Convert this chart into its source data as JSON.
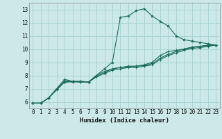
{
  "title": "",
  "xlabel": "Humidex (Indice chaleur)",
  "bg_color": "#cce8e8",
  "grid_color": "#aad4d4",
  "line_color": "#1a6b5a",
  "xlim": [
    -0.5,
    23.5
  ],
  "ylim": [
    5.5,
    13.5
  ],
  "xticks": [
    0,
    1,
    2,
    3,
    4,
    5,
    6,
    7,
    8,
    9,
    10,
    11,
    12,
    13,
    14,
    15,
    16,
    17,
    18,
    19,
    20,
    21,
    22,
    23
  ],
  "yticks": [
    6,
    7,
    8,
    9,
    10,
    11,
    12,
    13
  ],
  "line1_x": [
    0,
    1,
    2,
    3,
    4,
    5,
    6,
    7,
    8,
    9,
    10,
    11,
    12,
    13,
    14,
    15,
    16,
    17,
    18,
    19,
    20,
    21,
    22,
    23
  ],
  "line1_y": [
    5.9,
    5.9,
    6.3,
    7.0,
    7.5,
    7.55,
    7.55,
    7.5,
    8.0,
    8.5,
    9.0,
    12.4,
    12.5,
    12.9,
    13.05,
    12.5,
    12.1,
    11.75,
    11.0,
    10.7,
    10.6,
    10.5,
    10.4,
    10.3
  ],
  "line2_x": [
    0,
    1,
    2,
    3,
    4,
    5,
    6,
    7,
    8,
    9,
    10,
    11,
    12,
    13,
    14,
    15,
    16,
    17,
    18,
    19,
    20,
    21,
    22,
    23
  ],
  "line2_y": [
    5.9,
    5.9,
    6.3,
    7.0,
    7.7,
    7.55,
    7.5,
    7.5,
    8.0,
    8.3,
    8.5,
    8.6,
    8.7,
    8.7,
    8.8,
    9.0,
    9.5,
    9.8,
    9.9,
    10.0,
    10.15,
    10.2,
    10.3,
    10.3
  ],
  "line3_x": [
    0,
    1,
    2,
    3,
    4,
    5,
    6,
    7,
    8,
    9,
    10,
    11,
    12,
    13,
    14,
    15,
    16,
    17,
    18,
    19,
    20,
    21,
    22,
    23
  ],
  "line3_y": [
    5.9,
    5.9,
    6.3,
    6.95,
    7.6,
    7.55,
    7.55,
    7.5,
    7.9,
    8.2,
    8.5,
    8.6,
    8.65,
    8.7,
    8.75,
    8.9,
    9.3,
    9.6,
    9.8,
    10.0,
    10.1,
    10.2,
    10.25,
    10.3
  ],
  "line4_x": [
    0,
    1,
    2,
    3,
    4,
    5,
    6,
    7,
    8,
    9,
    10,
    11,
    12,
    13,
    14,
    15,
    16,
    17,
    18,
    19,
    20,
    21,
    22,
    23
  ],
  "line4_y": [
    5.9,
    5.9,
    6.3,
    6.9,
    7.5,
    7.5,
    7.5,
    7.5,
    7.9,
    8.15,
    8.4,
    8.5,
    8.6,
    8.6,
    8.7,
    8.8,
    9.2,
    9.5,
    9.7,
    9.9,
    10.05,
    10.1,
    10.2,
    10.3
  ]
}
